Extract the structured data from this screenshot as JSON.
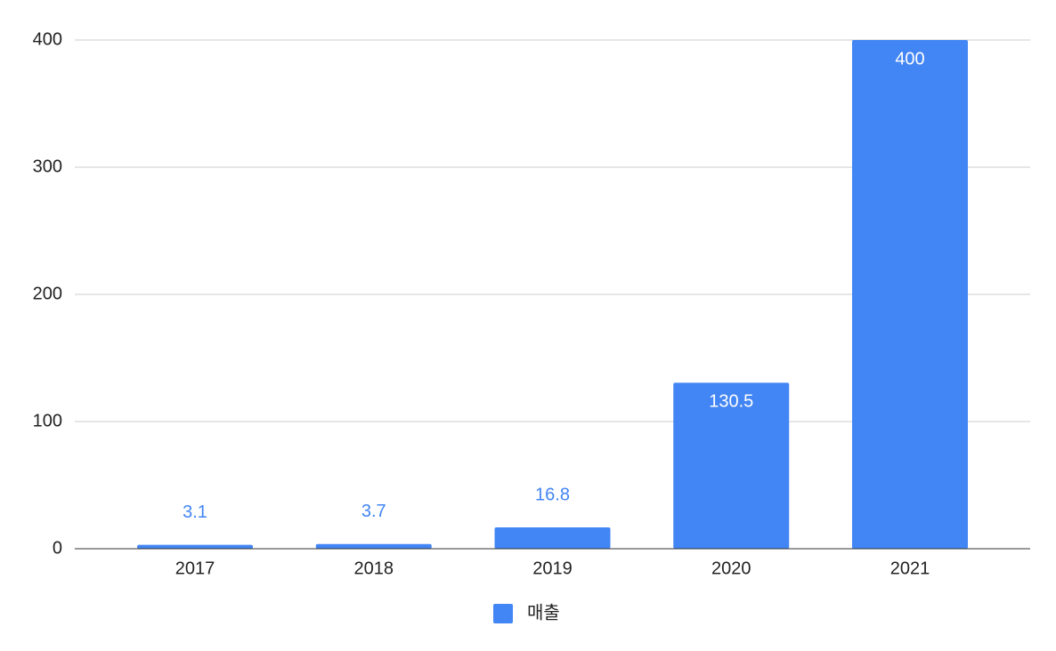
{
  "chart_data": {
    "type": "bar",
    "categories": [
      "2017",
      "2018",
      "2019",
      "2020",
      "2021"
    ],
    "series": [
      {
        "name": "매출",
        "color": "#4285f4",
        "values": [
          3.1,
          3.7,
          16.8,
          130.5,
          400
        ]
      }
    ],
    "ylim": [
      0,
      400
    ],
    "yticks": [
      0,
      100,
      200,
      300,
      400
    ],
    "grid": true,
    "legend": "bottom"
  }
}
